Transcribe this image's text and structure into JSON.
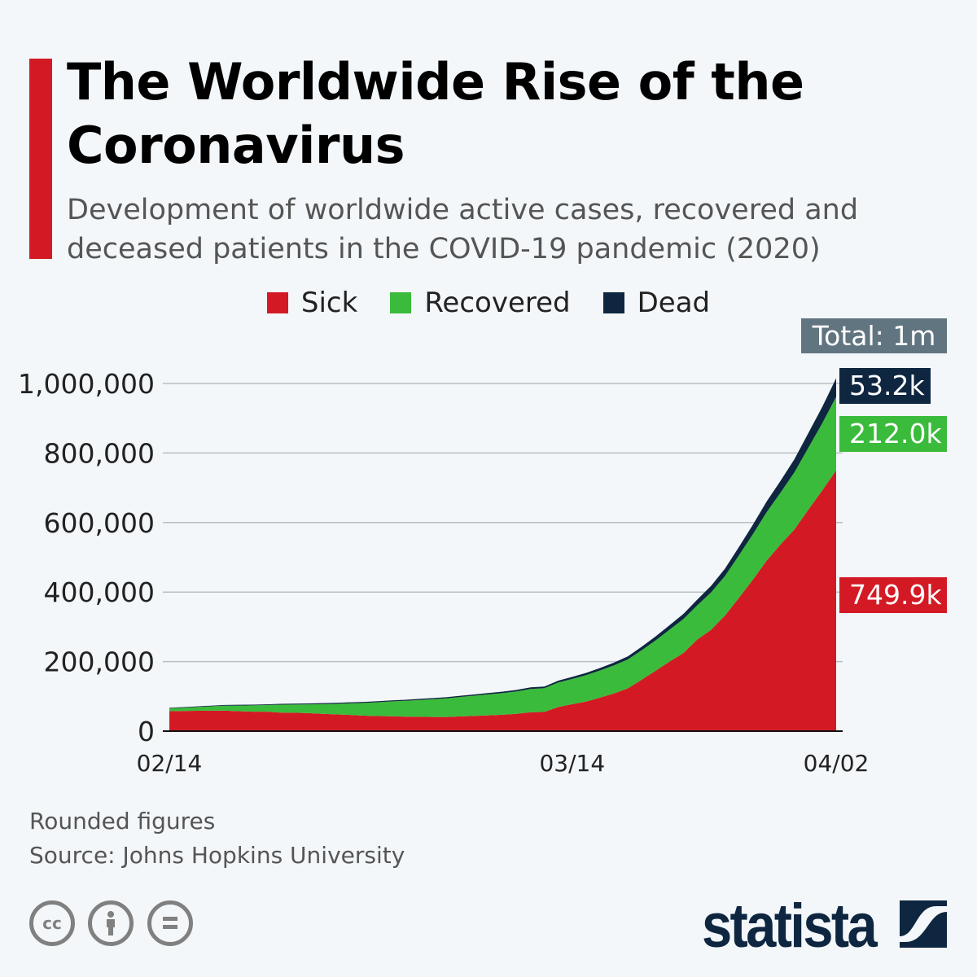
{
  "header": {
    "title": "The Worldwide Rise of the Coronavirus",
    "subtitle": "Development of worldwide active cases, recovered and deceased patients in the COVID-19 pandemic (2020)"
  },
  "colors": {
    "sick": "#d31a24",
    "recovered": "#3bbb3b",
    "dead": "#0e2640",
    "total_label": "#617581",
    "accent": "#d31a24"
  },
  "legend": [
    {
      "label": "Sick",
      "color": "#d31a24"
    },
    {
      "label": "Recovered",
      "color": "#3bbb3b"
    },
    {
      "label": "Dead",
      "color": "#0e2640"
    }
  ],
  "labels": {
    "total": "Total: 1m",
    "dead": "53.2k",
    "recovered": "212.0k",
    "sick": "749.9k"
  },
  "chart_data": {
    "type": "area",
    "stacked": true,
    "ylim": [
      0,
      1000000
    ],
    "yticks": [
      "0",
      "200,000",
      "400,000",
      "600,000",
      "800,000",
      "1,000,000"
    ],
    "ytick_values": [
      0,
      200000,
      400000,
      600000,
      800000,
      1000000
    ],
    "xticks": [
      "02/14",
      "03/14",
      "04/02"
    ],
    "xtick_index": [
      0,
      29,
      48
    ],
    "grid": true,
    "legend_position": "top",
    "dates": [
      "02/14",
      "02/15",
      "02/16",
      "02/17",
      "02/18",
      "02/19",
      "02/20",
      "02/21",
      "02/22",
      "02/23",
      "02/24",
      "02/25",
      "02/26",
      "02/27",
      "02/28",
      "02/29",
      "03/01",
      "03/02",
      "03/03",
      "03/04",
      "03/05",
      "03/06",
      "03/07",
      "03/08",
      "03/09",
      "03/10",
      "03/11",
      "03/12",
      "03/13",
      "03/14",
      "03/15",
      "03/16",
      "03/17",
      "03/18",
      "03/19",
      "03/20",
      "03/21",
      "03/22",
      "03/23",
      "03/24",
      "03/25",
      "03/26",
      "03/27",
      "03/28",
      "03/29",
      "03/30",
      "03/31",
      "04/01",
      "04/02"
    ],
    "series": [
      {
        "name": "Sick",
        "values": [
          57300,
          57900,
          58500,
          58800,
          58800,
          57500,
          55800,
          55900,
          53200,
          53000,
          51800,
          49800,
          48200,
          46600,
          44500,
          43300,
          42700,
          41600,
          41400,
          40600,
          40800,
          42400,
          43800,
          45300,
          47100,
          49900,
          54300,
          55300,
          69500,
          77700,
          85000,
          96300,
          108400,
          122900,
          147900,
          173500,
          199900,
          224400,
          263400,
          291700,
          332600,
          383500,
          435200,
          490600,
          537100,
          580200,
          637400,
          692200,
          749900
        ]
      },
      {
        "name": "Recovered",
        "values": [
          8100,
          9400,
          10900,
          12600,
          14400,
          16100,
          18200,
          18900,
          22900,
          23400,
          25200,
          27900,
          30400,
          33300,
          36700,
          39800,
          42700,
          45600,
          48200,
          51200,
          53800,
          55900,
          58400,
          60700,
          62500,
          64400,
          67000,
          68300,
          70300,
          72600,
          76000,
          78100,
          80800,
          83300,
          84900,
          87400,
          91700,
          97900,
          98300,
          107700,
          113800,
          122200,
          130900,
          139400,
          149100,
          164600,
          178000,
          193200,
          212000
        ]
      },
      {
        "name": "Dead",
        "values": [
          1500,
          1700,
          1800,
          1900,
          2000,
          2100,
          2200,
          2200,
          2500,
          2500,
          2600,
          2700,
          2800,
          2800,
          2900,
          2900,
          3000,
          3100,
          3200,
          3300,
          3300,
          3500,
          3600,
          3800,
          4000,
          4300,
          4600,
          4700,
          5400,
          5800,
          6400,
          7100,
          7900,
          8700,
          9900,
          11300,
          12900,
          14600,
          16500,
          18600,
          21200,
          23900,
          27200,
          30700,
          33900,
          37600,
          42100,
          47200,
          53200
        ]
      }
    ]
  },
  "footer": {
    "note": "Rounded figures",
    "source": "Source: Johns Hopkins University",
    "logo": "statista",
    "license_icons": [
      "cc-icon",
      "by-icon",
      "nd-icon"
    ]
  }
}
